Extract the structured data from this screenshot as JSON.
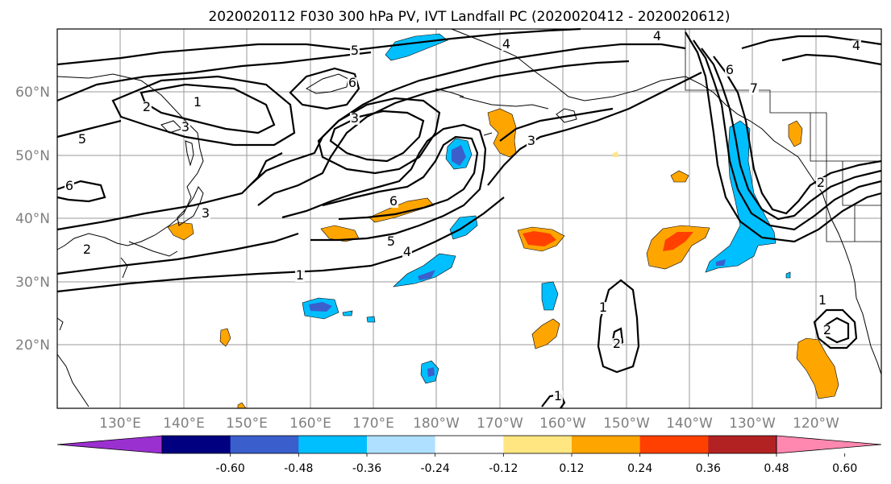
{
  "title": "2020020112 F030 300 hPa PV, IVT Landfall PC (2020020412 - 2020020612)",
  "map": {
    "lat_ticks": [
      "60°N",
      "50°N",
      "40°N",
      "30°N",
      "20°N"
    ],
    "lon_ticks": [
      "130°E",
      "140°E",
      "150°E",
      "160°E",
      "170°E",
      "180°W",
      "170°W",
      "160°W",
      "150°W",
      "140°W",
      "130°W",
      "120°W"
    ],
    "contour_labels": [
      "5",
      "4",
      "4",
      "6",
      "4",
      "2",
      "1",
      "3",
      "3",
      "5",
      "6",
      "6",
      "3",
      "5",
      "4",
      "2",
      "1",
      "3",
      "1",
      "2",
      "1",
      "2",
      "1",
      "6",
      "7",
      "2"
    ]
  },
  "colorbar": {
    "ticks": [
      "-0.60",
      "-0.48",
      "-0.36",
      "-0.24",
      "-0.12",
      "0.12",
      "0.24",
      "0.36",
      "0.48",
      "0.60"
    ],
    "colors": [
      "#9b30d0",
      "#000080",
      "#3a5fcd",
      "#00bfff",
      "#b0e0ff",
      "#ffffff",
      "#ffe680",
      "#ffa500",
      "#ff4000",
      "#b22222",
      "#ff88b0"
    ]
  }
}
